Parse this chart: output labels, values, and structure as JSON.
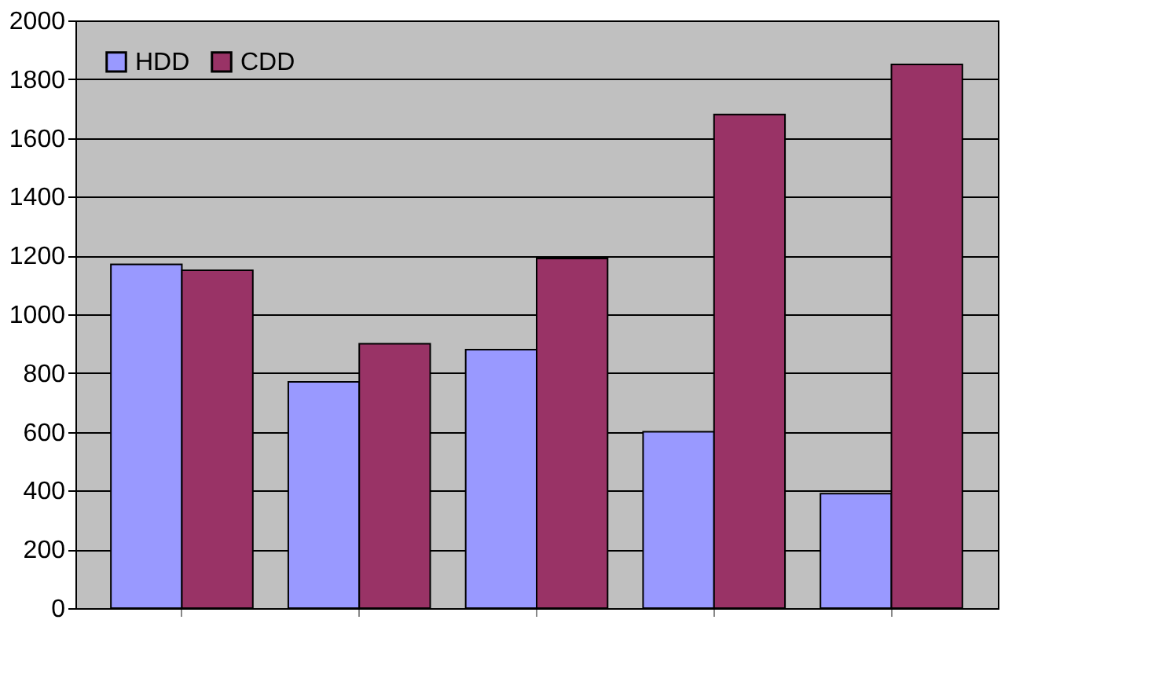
{
  "chart_data": {
    "type": "bar",
    "categories": [
      null,
      null,
      null,
      null,
      null
    ],
    "series": [
      {
        "name": "HDD",
        "color": "#9999ff",
        "values": [
          1170,
          770,
          880,
          600,
          390
        ]
      },
      {
        "name": "CDD",
        "color": "#993366",
        "values": [
          1150,
          900,
          1190,
          1680,
          1850
        ]
      }
    ],
    "ylim": [
      0,
      2000
    ],
    "yticks": [
      0,
      200,
      400,
      600,
      800,
      1000,
      1200,
      1400,
      1600,
      1800,
      2000
    ],
    "grid": "y",
    "legend": "top left",
    "tick_labels": "y"
  }
}
